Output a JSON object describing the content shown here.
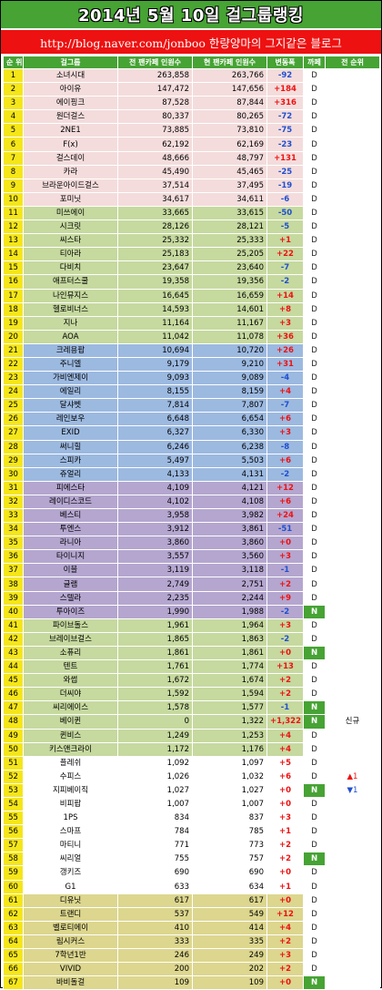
{
  "title": "2014년 5월 10일 걸그룹랭킹",
  "subtitle": "http://blog.naver.com/jonboo  한량양마의 그지같은 블로그",
  "headers": {
    "rank": "순 위",
    "group": "걸그룹",
    "prev_fans": "전 팬카페 인원수",
    "cur_fans": "현 팬카페 인원수",
    "change": "변동폭",
    "cafe": "까페",
    "prev_rank": "전 순위"
  },
  "colors": {
    "header_green": "#46a334",
    "subtitle_red": "#ee1111",
    "increase": "#ee1111",
    "decrease": "#1f4fd0"
  },
  "rows": [
    {
      "rank": "1",
      "name": "소녀시대",
      "prev": "263,858",
      "cur": "263,766",
      "chg": "-92",
      "cafe": "D",
      "prev_rank": "",
      "g": "pink"
    },
    {
      "rank": "2",
      "name": "아이유",
      "prev": "147,472",
      "cur": "147,656",
      "chg": "+184",
      "cafe": "D",
      "prev_rank": "",
      "g": "pink"
    },
    {
      "rank": "3",
      "name": "에이핑크",
      "prev": "87,528",
      "cur": "87,844",
      "chg": "+316",
      "cafe": "D",
      "prev_rank": "",
      "g": "pink"
    },
    {
      "rank": "4",
      "name": "원더걸스",
      "prev": "80,337",
      "cur": "80,265",
      "chg": "-72",
      "cafe": "D",
      "prev_rank": "",
      "g": "pink"
    },
    {
      "rank": "5",
      "name": "2NE1",
      "prev": "73,885",
      "cur": "73,810",
      "chg": "-75",
      "cafe": "D",
      "prev_rank": "",
      "g": "pink"
    },
    {
      "rank": "6",
      "name": "F(x)",
      "prev": "62,192",
      "cur": "62,169",
      "chg": "-23",
      "cafe": "D",
      "prev_rank": "",
      "g": "pink"
    },
    {
      "rank": "7",
      "name": "걸스데이",
      "prev": "48,666",
      "cur": "48,797",
      "chg": "+131",
      "cafe": "D",
      "prev_rank": "",
      "g": "pink"
    },
    {
      "rank": "8",
      "name": "카라",
      "prev": "45,490",
      "cur": "45,465",
      "chg": "-25",
      "cafe": "D",
      "prev_rank": "",
      "g": "pink"
    },
    {
      "rank": "9",
      "name": "브라운아이드걸스",
      "prev": "37,514",
      "cur": "37,495",
      "chg": "-19",
      "cafe": "D",
      "prev_rank": "",
      "g": "pink"
    },
    {
      "rank": "10",
      "name": "포미닛",
      "prev": "34,617",
      "cur": "34,611",
      "chg": "-6",
      "cafe": "D",
      "prev_rank": "",
      "g": "pink"
    },
    {
      "rank": "11",
      "name": "미쓰에이",
      "prev": "33,665",
      "cur": "33,615",
      "chg": "-50",
      "cafe": "D",
      "prev_rank": "",
      "g": "green"
    },
    {
      "rank": "12",
      "name": "시크릿",
      "prev": "28,126",
      "cur": "28,121",
      "chg": "-5",
      "cafe": "D",
      "prev_rank": "",
      "g": "green"
    },
    {
      "rank": "13",
      "name": "씨스타",
      "prev": "25,332",
      "cur": "25,333",
      "chg": "+1",
      "cafe": "D",
      "prev_rank": "",
      "g": "green"
    },
    {
      "rank": "14",
      "name": "티아라",
      "prev": "25,183",
      "cur": "25,205",
      "chg": "+22",
      "cafe": "D",
      "prev_rank": "",
      "g": "green"
    },
    {
      "rank": "15",
      "name": "다비치",
      "prev": "23,647",
      "cur": "23,640",
      "chg": "-7",
      "cafe": "D",
      "prev_rank": "",
      "g": "green"
    },
    {
      "rank": "16",
      "name": "애프터스쿨",
      "prev": "19,358",
      "cur": "19,356",
      "chg": "-2",
      "cafe": "D",
      "prev_rank": "",
      "g": "green"
    },
    {
      "rank": "17",
      "name": "나인뮤지스",
      "prev": "16,645",
      "cur": "16,659",
      "chg": "+14",
      "cafe": "D",
      "prev_rank": "",
      "g": "green"
    },
    {
      "rank": "18",
      "name": "헬로비너스",
      "prev": "14,593",
      "cur": "14,601",
      "chg": "+8",
      "cafe": "D",
      "prev_rank": "",
      "g": "green"
    },
    {
      "rank": "19",
      "name": "지나",
      "prev": "11,164",
      "cur": "11,167",
      "chg": "+3",
      "cafe": "D",
      "prev_rank": "",
      "g": "green"
    },
    {
      "rank": "20",
      "name": "AOA",
      "prev": "11,042",
      "cur": "11,078",
      "chg": "+36",
      "cafe": "D",
      "prev_rank": "",
      "g": "green"
    },
    {
      "rank": "21",
      "name": "크레용팝",
      "prev": "10,694",
      "cur": "10,720",
      "chg": "+26",
      "cafe": "D",
      "prev_rank": "",
      "g": "blue"
    },
    {
      "rank": "22",
      "name": "주니엘",
      "prev": "9,179",
      "cur": "9,210",
      "chg": "+31",
      "cafe": "D",
      "prev_rank": "",
      "g": "blue"
    },
    {
      "rank": "23",
      "name": "가비엔제이",
      "prev": "9,093",
      "cur": "9,089",
      "chg": "-4",
      "cafe": "D",
      "prev_rank": "",
      "g": "blue"
    },
    {
      "rank": "24",
      "name": "에일리",
      "prev": "8,155",
      "cur": "8,159",
      "chg": "+4",
      "cafe": "D",
      "prev_rank": "",
      "g": "blue"
    },
    {
      "rank": "25",
      "name": "달샤벳",
      "prev": "7,814",
      "cur": "7,807",
      "chg": "-7",
      "cafe": "D",
      "prev_rank": "",
      "g": "blue"
    },
    {
      "rank": "26",
      "name": "레인보우",
      "prev": "6,648",
      "cur": "6,654",
      "chg": "+6",
      "cafe": "D",
      "prev_rank": "",
      "g": "blue"
    },
    {
      "rank": "27",
      "name": "EXID",
      "prev": "6,327",
      "cur": "6,330",
      "chg": "+3",
      "cafe": "D",
      "prev_rank": "",
      "g": "blue"
    },
    {
      "rank": "28",
      "name": "써니힐",
      "prev": "6,246",
      "cur": "6,238",
      "chg": "-8",
      "cafe": "D",
      "prev_rank": "",
      "g": "blue"
    },
    {
      "rank": "29",
      "name": "스피카",
      "prev": "5,497",
      "cur": "5,503",
      "chg": "+6",
      "cafe": "D",
      "prev_rank": "",
      "g": "blue"
    },
    {
      "rank": "30",
      "name": "쥬얼리",
      "prev": "4,133",
      "cur": "4,131",
      "chg": "-2",
      "cafe": "D",
      "prev_rank": "",
      "g": "blue"
    },
    {
      "rank": "31",
      "name": "피에스타",
      "prev": "4,109",
      "cur": "4,121",
      "chg": "+12",
      "cafe": "D",
      "prev_rank": "",
      "g": "purple"
    },
    {
      "rank": "32",
      "name": "레이디스코드",
      "prev": "4,102",
      "cur": "4,108",
      "chg": "+6",
      "cafe": "D",
      "prev_rank": "",
      "g": "purple"
    },
    {
      "rank": "33",
      "name": "베스티",
      "prev": "3,958",
      "cur": "3,982",
      "chg": "+24",
      "cafe": "D",
      "prev_rank": "",
      "g": "purple"
    },
    {
      "rank": "34",
      "name": "투엔스",
      "prev": "3,912",
      "cur": "3,861",
      "chg": "-51",
      "cafe": "D",
      "prev_rank": "",
      "g": "purple"
    },
    {
      "rank": "35",
      "name": "라니아",
      "prev": "3,860",
      "cur": "3,860",
      "chg": "+0",
      "cafe": "D",
      "prev_rank": "",
      "g": "purple"
    },
    {
      "rank": "36",
      "name": "타이니지",
      "prev": "3,557",
      "cur": "3,560",
      "chg": "+3",
      "cafe": "D",
      "prev_rank": "",
      "g": "purple"
    },
    {
      "rank": "37",
      "name": "이블",
      "prev": "3,119",
      "cur": "3,118",
      "chg": "-1",
      "cafe": "D",
      "prev_rank": "",
      "g": "purple"
    },
    {
      "rank": "38",
      "name": "글램",
      "prev": "2,749",
      "cur": "2,751",
      "chg": "+2",
      "cafe": "D",
      "prev_rank": "",
      "g": "purple"
    },
    {
      "rank": "39",
      "name": "스텔라",
      "prev": "2,235",
      "cur": "2,244",
      "chg": "+9",
      "cafe": "D",
      "prev_rank": "",
      "g": "purple"
    },
    {
      "rank": "40",
      "name": "투아이즈",
      "prev": "1,990",
      "cur": "1,988",
      "chg": "-2",
      "cafe": "N",
      "prev_rank": "",
      "g": "purple"
    },
    {
      "rank": "41",
      "name": "파이브돌스",
      "prev": "1,961",
      "cur": "1,964",
      "chg": "+3",
      "cafe": "D",
      "prev_rank": "",
      "g": "green"
    },
    {
      "rank": "42",
      "name": "브레이브걸스",
      "prev": "1,865",
      "cur": "1,863",
      "chg": "-2",
      "cafe": "D",
      "prev_rank": "",
      "g": "green"
    },
    {
      "rank": "43",
      "name": "소퓨리",
      "prev": "1,861",
      "cur": "1,861",
      "chg": "+0",
      "cafe": "N",
      "prev_rank": "",
      "g": "green"
    },
    {
      "rank": "44",
      "name": "텐트",
      "prev": "1,761",
      "cur": "1,774",
      "chg": "+13",
      "cafe": "D",
      "prev_rank": "",
      "g": "green"
    },
    {
      "rank": "45",
      "name": "와썹",
      "prev": "1,672",
      "cur": "1,674",
      "chg": "+2",
      "cafe": "D",
      "prev_rank": "",
      "g": "green"
    },
    {
      "rank": "46",
      "name": "더씨야",
      "prev": "1,592",
      "cur": "1,594",
      "chg": "+2",
      "cafe": "D",
      "prev_rank": "",
      "g": "green"
    },
    {
      "rank": "47",
      "name": "씨리에이스",
      "prev": "1,578",
      "cur": "1,577",
      "chg": "-1",
      "cafe": "N",
      "prev_rank": "",
      "g": "green"
    },
    {
      "rank": "48",
      "name": "베이퀸",
      "prev": "0",
      "cur": "1,322",
      "chg": "+1,322",
      "cafe": "N",
      "prev_rank": "신규",
      "g": "green"
    },
    {
      "rank": "49",
      "name": "퀸비스",
      "prev": "1,249",
      "cur": "1,253",
      "chg": "+4",
      "cafe": "D",
      "prev_rank": "",
      "g": "green"
    },
    {
      "rank": "50",
      "name": "키스앤크라이",
      "prev": "1,172",
      "cur": "1,176",
      "chg": "+4",
      "cafe": "D",
      "prev_rank": "",
      "g": "green"
    },
    {
      "rank": "51",
      "name": "플레쉬",
      "prev": "1,092",
      "cur": "1,097",
      "chg": "+5",
      "cafe": "D",
      "prev_rank": "",
      "g": "white"
    },
    {
      "rank": "52",
      "name": "수피스",
      "prev": "1,026",
      "cur": "1,032",
      "chg": "+6",
      "cafe": "D",
      "prev_rank": "▲1",
      "g": "white"
    },
    {
      "rank": "53",
      "name": "지피베이직",
      "prev": "1,027",
      "cur": "1,027",
      "chg": "+0",
      "cafe": "N",
      "prev_rank": "▼1",
      "g": "white"
    },
    {
      "rank": "54",
      "name": "비피팝",
      "prev": "1,007",
      "cur": "1,007",
      "chg": "+0",
      "cafe": "D",
      "prev_rank": "",
      "g": "white"
    },
    {
      "rank": "55",
      "name": "1PS",
      "prev": "834",
      "cur": "837",
      "chg": "+3",
      "cafe": "D",
      "prev_rank": "",
      "g": "white"
    },
    {
      "rank": "56",
      "name": "스마프",
      "prev": "784",
      "cur": "785",
      "chg": "+1",
      "cafe": "D",
      "prev_rank": "",
      "g": "white"
    },
    {
      "rank": "57",
      "name": "마티니",
      "prev": "771",
      "cur": "773",
      "chg": "+2",
      "cafe": "D",
      "prev_rank": "",
      "g": "white"
    },
    {
      "rank": "58",
      "name": "씨리얼",
      "prev": "755",
      "cur": "757",
      "chg": "+2",
      "cafe": "N",
      "prev_rank": "",
      "g": "white"
    },
    {
      "rank": "59",
      "name": "갱키즈",
      "prev": "690",
      "cur": "690",
      "chg": "+0",
      "cafe": "D",
      "prev_rank": "",
      "g": "white"
    },
    {
      "rank": "60",
      "name": "G1",
      "prev": "633",
      "cur": "634",
      "chg": "+1",
      "cafe": "D",
      "prev_rank": "",
      "g": "white"
    },
    {
      "rank": "61",
      "name": "디유닛",
      "prev": "617",
      "cur": "617",
      "chg": "+0",
      "cafe": "D",
      "prev_rank": "",
      "g": "khaki"
    },
    {
      "rank": "62",
      "name": "트랜디",
      "prev": "537",
      "cur": "549",
      "chg": "+12",
      "cafe": "D",
      "prev_rank": "",
      "g": "khaki"
    },
    {
      "rank": "63",
      "name": "벨로티에이",
      "prev": "410",
      "cur": "414",
      "chg": "+4",
      "cafe": "D",
      "prev_rank": "",
      "g": "khaki"
    },
    {
      "rank": "64",
      "name": "림시커스",
      "prev": "333",
      "cur": "335",
      "chg": "+2",
      "cafe": "D",
      "prev_rank": "",
      "g": "khaki"
    },
    {
      "rank": "65",
      "name": "7학년1반",
      "prev": "246",
      "cur": "249",
      "chg": "+3",
      "cafe": "D",
      "prev_rank": "",
      "g": "khaki"
    },
    {
      "rank": "66",
      "name": "VIVID",
      "prev": "200",
      "cur": "202",
      "chg": "+2",
      "cafe": "D",
      "prev_rank": "",
      "g": "khaki"
    },
    {
      "rank": "67",
      "name": "바비돌걸",
      "prev": "109",
      "cur": "109",
      "chg": "+0",
      "cafe": "N",
      "prev_rank": "",
      "g": "khaki"
    }
  ]
}
